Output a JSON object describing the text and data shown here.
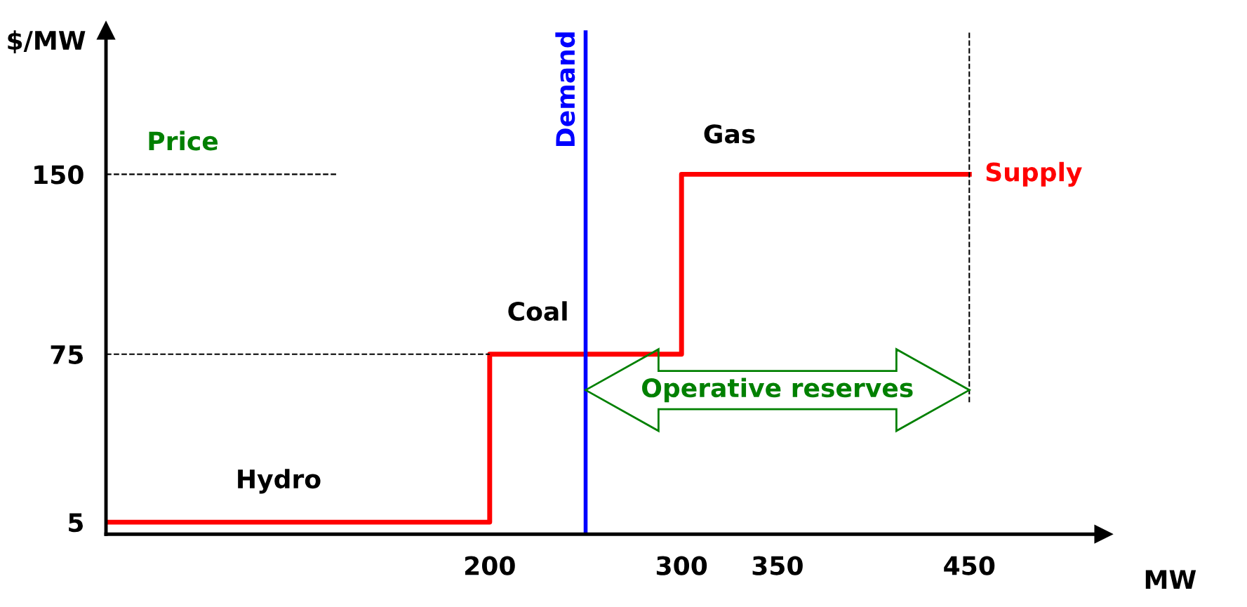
{
  "chart_data": {
    "type": "step",
    "xlabel": "MW",
    "ylabel": "$/MW",
    "xlim": [
      0,
      520
    ],
    "ylim": [
      0,
      210
    ],
    "xticks": [
      200,
      300,
      350,
      450
    ],
    "yticks": [
      5,
      75,
      150
    ],
    "grid": false,
    "legend": false,
    "line_style": "solid",
    "series": [
      {
        "name": "Supply",
        "color": "#ff0000",
        "x": [
          0,
          200,
          300,
          450
        ],
        "values": [
          5,
          75,
          150,
          150
        ]
      },
      {
        "type": "line",
        "color": "#000000",
        "line_style": "dashed",
        "x": [
          0,
          120
        ],
        "values": [
          150,
          150
        ]
      },
      {
        "type": "line",
        "color": "#000000",
        "line_style": "dashed",
        "x": [
          0,
          200
        ],
        "values": [
          75,
          75
        ]
      },
      {
        "type": "line",
        "color": "#000000",
        "line_style": "dashed",
        "x": [
          450,
          450
        ],
        "values": [
          55,
          210
        ]
      }
    ],
    "ref_lines": [
      {
        "axis": "x",
        "value": 250,
        "label": "Demand",
        "color": "#0000ff",
        "line_style": "solid"
      }
    ],
    "annotations": [
      "Hydro",
      "Coal",
      "Gas",
      "Price",
      "Operative reserves"
    ]
  }
}
